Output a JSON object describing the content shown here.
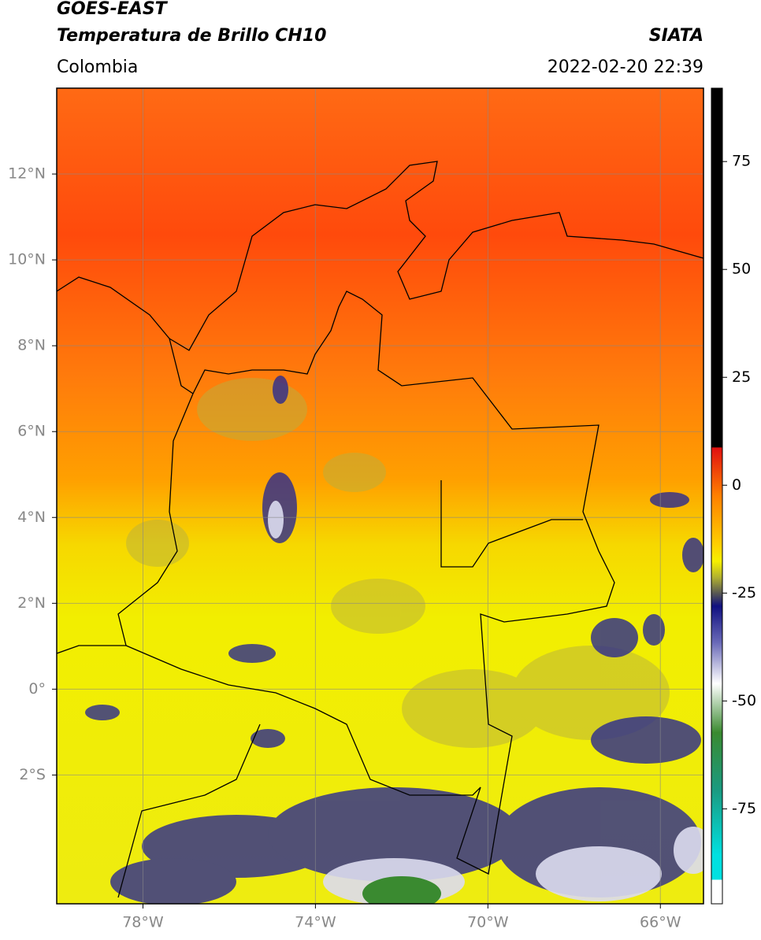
{
  "header": {
    "title_line1": "GOES-EAST",
    "title_line2": "Temperatura de Brillo CH10",
    "source": "SIATA",
    "region": "Colombia",
    "timestamp": "2022-02-20 22:39"
  },
  "map": {
    "lon_range": [
      -80,
      -65
    ],
    "lat_range": [
      -5,
      14
    ],
    "lon_ticks": [
      {
        "value": -78,
        "label": "78°W"
      },
      {
        "value": -74,
        "label": "74°W"
      },
      {
        "value": -70,
        "label": "70°W"
      },
      {
        "value": -66,
        "label": "66°W"
      }
    ],
    "lat_ticks": [
      {
        "value": 12,
        "label": "12°N"
      },
      {
        "value": 10,
        "label": "10°N"
      },
      {
        "value": 8,
        "label": "8°N"
      },
      {
        "value": 6,
        "label": "6°N"
      },
      {
        "value": 4,
        "label": "4°N"
      },
      {
        "value": 2,
        "label": "2°N"
      },
      {
        "value": 0,
        "label": "0°"
      },
      {
        "value": -2,
        "label": "2°S"
      }
    ],
    "colorbar": {
      "range": [
        -97,
        92
      ],
      "ticks": [
        75,
        50,
        25,
        0,
        -25,
        -50,
        -75
      ]
    }
  }
}
